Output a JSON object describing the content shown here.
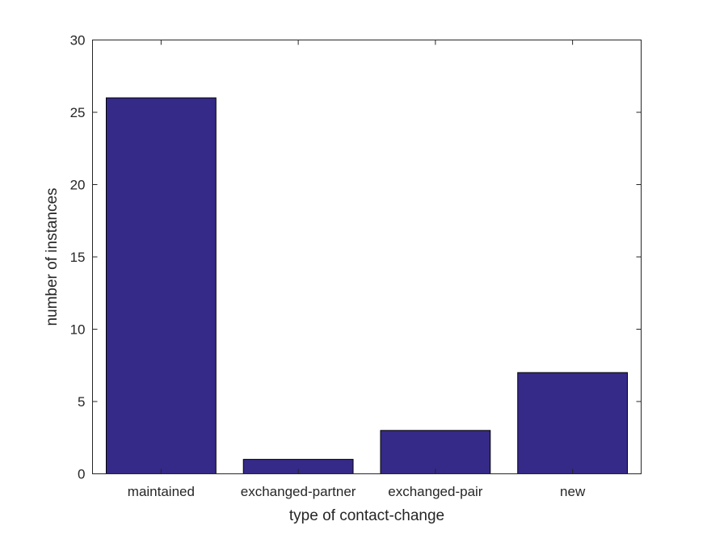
{
  "chart_data": {
    "type": "bar",
    "categories": [
      "maintained",
      "exchanged-partner",
      "exchanged-pair",
      "new"
    ],
    "values": [
      26,
      1,
      3,
      7
    ],
    "title": "",
    "xlabel": "type of contact-change",
    "ylabel": "number of instances",
    "ylim": [
      0,
      30
    ],
    "yticks": [
      0,
      5,
      10,
      15,
      20,
      25,
      30
    ],
    "grid": false,
    "bar_color": "#352a87",
    "edge_color": "#000000"
  }
}
